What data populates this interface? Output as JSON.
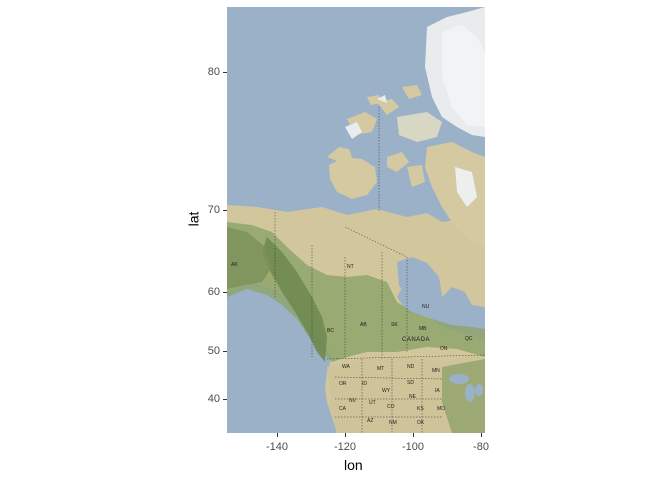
{
  "chart_data": {
    "type": "map",
    "xlabel": "lon",
    "ylabel": "lat",
    "xlim": [
      -155,
      -79
    ],
    "x_ticks": [
      "-140",
      "-120",
      "-100",
      "-80"
    ],
    "y_ticks": [
      "80",
      "70",
      "60",
      "50",
      "40"
    ],
    "tiles": "satellite terrain (water, tundra, forest, ice)",
    "map_labels": {
      "country": "CANADA",
      "nt": "NT",
      "nu": "NU",
      "bc": "BC",
      "ab": "AB",
      "sk": "SK",
      "mb": "MB",
      "on": "ON",
      "qc": "QC",
      "wa": "WA",
      "mt": "MT",
      "nd": "ND",
      "mn": "MN",
      "or": "OR",
      "id": "ID",
      "sd": "SD",
      "wy": "WY",
      "ne": "NE",
      "nv": "NV",
      "ut": "UT",
      "co": "CO",
      "ks": "KS",
      "ia": "IA",
      "mo": "MO",
      "ca": "CA",
      "az": "AZ",
      "nm": "NM",
      "ok": "OK",
      "ak": "AK"
    },
    "colors": {
      "water": "#9bb1c8",
      "tundra": "#d4c9a0",
      "forest": "#7f9a63",
      "ice": "#eef3f6",
      "axis_text": "#4d4d4d"
    }
  }
}
